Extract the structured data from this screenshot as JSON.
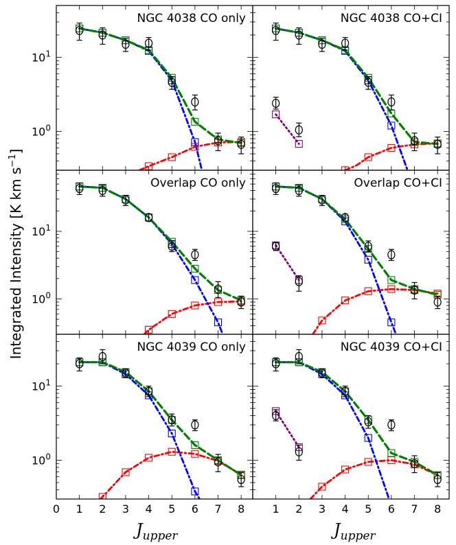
{
  "figure": {
    "ylabel_text": "Integrated Intensity [K km s",
    "ylabel_sup": "−1",
    "ylabel_close": "]",
    "xlabel_main": "J",
    "xlabel_sub": "upper",
    "x_ticks": [
      "0",
      "1",
      "2",
      "3",
      "4",
      "5",
      "6",
      "7",
      "8"
    ],
    "y_ticks": [
      {
        "value": 1,
        "label": "10",
        "sup": "0"
      },
      {
        "value": 10,
        "label": "10",
        "sup": "1"
      }
    ],
    "colors": {
      "data": "#000000",
      "total": "#007f00",
      "low": "#0000ff",
      "high": "#ff0000",
      "ci": "#800080"
    }
  },
  "chart_data": [
    {
      "type": "line",
      "title": "NGC 4038 CO only",
      "xlim": [
        0,
        8.5
      ],
      "ylim": [
        0.3,
        50
      ],
      "yscale": "log",
      "observed": {
        "x": [
          1,
          2,
          3,
          4,
          5,
          6,
          7,
          8
        ],
        "y": [
          23,
          20,
          15,
          15.5,
          4.6,
          2.5,
          0.75,
          0.67
        ],
        "err_low": [
          17,
          15,
          12,
          12.5,
          3.7,
          1.95,
          0.55,
          0.5
        ],
        "err_high": [
          29,
          25,
          18,
          18.5,
          5.5,
          3.1,
          0.95,
          0.84
        ]
      },
      "total": {
        "x": [
          1,
          2,
          3,
          4,
          5,
          6,
          7,
          8
        ],
        "y": [
          24.5,
          21.5,
          17,
          12.5,
          5.3,
          1.35,
          0.78,
          0.7
        ]
      },
      "low_component": {
        "x": [
          1,
          2,
          3,
          4,
          5,
          6,
          6.3
        ],
        "y": [
          24.5,
          21.5,
          17,
          12.2,
          4.9,
          0.72,
          0.3
        ]
      },
      "high_component": {
        "x": [
          3.6,
          4,
          5,
          6,
          7,
          8
        ],
        "y": [
          0.3,
          0.34,
          0.45,
          0.62,
          0.71,
          0.72
        ]
      }
    },
    {
      "type": "line",
      "title": "NGC 4038 CO+CI",
      "xlim": [
        0,
        8.5
      ],
      "ylim": [
        0.3,
        50
      ],
      "yscale": "log",
      "observed": {
        "x": [
          1,
          2,
          3,
          4,
          5,
          6,
          7,
          8
        ],
        "y": [
          23,
          20,
          15,
          15.5,
          4.6,
          2.5,
          0.75,
          0.67
        ],
        "err_low": [
          17,
          15,
          12,
          12.5,
          3.7,
          1.95,
          0.55,
          0.5
        ],
        "err_high": [
          29,
          25,
          18,
          18.5,
          5.5,
          3.1,
          0.95,
          0.84
        ]
      },
      "total": {
        "x": [
          1,
          2,
          3,
          4,
          5,
          6,
          7,
          8
        ],
        "y": [
          24.5,
          21.5,
          17,
          12.5,
          5.3,
          1.75,
          0.72,
          0.68
        ]
      },
      "low_component": {
        "x": [
          1,
          2,
          3,
          4,
          5,
          6,
          6.7
        ],
        "y": [
          24.5,
          21.5,
          17,
          12.2,
          4.9,
          1.2,
          0.3
        ]
      },
      "high_component": {
        "x": [
          4,
          4.5,
          5,
          6,
          7,
          8
        ],
        "y": [
          0.3,
          0.35,
          0.45,
          0.6,
          0.67,
          0.69
        ]
      },
      "ci": {
        "x": [
          1,
          2
        ],
        "y": [
          1.7,
          0.68
        ]
      },
      "ci_observed": {
        "x": [
          1,
          2
        ],
        "y": [
          2.4,
          1.05
        ],
        "err_low": [
          2.0,
          0.85
        ],
        "err_high": [
          2.9,
          1.3
        ]
      }
    },
    {
      "type": "line",
      "title": "Overlap CO only",
      "xlim": [
        0,
        8.5
      ],
      "ylim": [
        0.3,
        80
      ],
      "yscale": "log",
      "observed": {
        "x": [
          1,
          2,
          3,
          4,
          5,
          6,
          7,
          8
        ],
        "y": [
          43,
          40,
          29,
          16,
          6,
          4.5,
          1.4,
          0.9
        ],
        "err_low": [
          35,
          33,
          24,
          14,
          5,
          3.7,
          1.05,
          0.72
        ],
        "err_high": [
          52,
          48,
          34,
          18,
          7.2,
          5.4,
          1.8,
          1.1
        ]
      },
      "total": {
        "x": [
          1,
          2,
          3,
          4,
          5,
          6,
          7,
          8
        ],
        "y": [
          46,
          44,
          30,
          16,
          7,
          2.8,
          1.35,
          0.95
        ]
      },
      "low_component": {
        "x": [
          1,
          2,
          3,
          4,
          5,
          6,
          7,
          7.2
        ],
        "y": [
          46,
          44,
          30,
          16,
          6.5,
          1.9,
          0.45,
          0.3
        ]
      },
      "high_component": {
        "x": [
          3.8,
          4,
          5,
          6,
          7,
          8
        ],
        "y": [
          0.3,
          0.35,
          0.6,
          0.8,
          0.9,
          0.92
        ]
      }
    },
    {
      "type": "line",
      "title": "Overlap CO+CI",
      "xlim": [
        0,
        8.5
      ],
      "ylim": [
        0.3,
        80
      ],
      "yscale": "log",
      "observed": {
        "x": [
          1,
          2,
          3,
          4,
          5,
          6,
          7,
          8
        ],
        "y": [
          43,
          40,
          29,
          16,
          6,
          4.5,
          1.35,
          0.9
        ],
        "err_low": [
          35,
          33,
          24,
          14,
          5,
          3.7,
          1.0,
          0.72
        ],
        "err_high": [
          52,
          48,
          34,
          18,
          7.2,
          5.4,
          1.75,
          1.1
        ]
      },
      "total": {
        "x": [
          1,
          2,
          3,
          4,
          5,
          6,
          7,
          8
        ],
        "y": [
          46,
          44,
          30,
          15,
          5.5,
          1.9,
          1.4,
          1.15
        ]
      },
      "low_component": {
        "x": [
          1,
          2,
          3,
          4,
          5,
          6,
          6.2
        ],
        "y": [
          46,
          44,
          30,
          14,
          3.8,
          0.45,
          0.3
        ]
      },
      "high_component": {
        "x": [
          2.6,
          3,
          4,
          5,
          6,
          7,
          8
        ],
        "y": [
          0.3,
          0.48,
          0.95,
          1.3,
          1.4,
          1.35,
          1.2
        ]
      },
      "ci": {
        "x": [
          1,
          2
        ],
        "y": [
          6.2,
          1.9
        ]
      },
      "ci_observed": {
        "x": [
          1,
          2
        ],
        "y": [
          6.0,
          1.8
        ],
        "err_low": [
          5.2,
          1.3
        ],
        "err_high": [
          6.8,
          2.2
        ]
      }
    },
    {
      "type": "line",
      "title": "NGC 4039 CO only",
      "xlim": [
        0,
        8.5
      ],
      "ylim": [
        0.3,
        50
      ],
      "yscale": "log",
      "observed": {
        "x": [
          1,
          2,
          3,
          4,
          5,
          6,
          7,
          8
        ],
        "y": [
          20,
          25,
          15,
          8.5,
          3.5,
          3.0,
          0.95,
          0.55
        ],
        "err_low": [
          16,
          20,
          13,
          7.2,
          2.9,
          2.5,
          0.7,
          0.44
        ],
        "err_high": [
          24,
          31,
          17,
          10,
          4.2,
          3.5,
          1.2,
          0.68
        ]
      },
      "total": {
        "x": [
          1,
          2,
          3,
          4,
          5,
          6,
          7,
          8
        ],
        "y": [
          21,
          21,
          15.5,
          8.5,
          3.5,
          1.6,
          1.0,
          0.63
        ]
      },
      "low_component": {
        "x": [
          1,
          2,
          3,
          4,
          5,
          6,
          6.2
        ],
        "y": [
          21,
          21,
          14.5,
          7.5,
          2.3,
          0.38,
          0.3
        ]
      },
      "high_component": {
        "x": [
          1.9,
          2,
          3,
          4,
          5,
          6,
          7,
          8
        ],
        "y": [
          0.3,
          0.32,
          0.69,
          1.08,
          1.3,
          1.22,
          0.98,
          0.64
        ]
      }
    },
    {
      "type": "line",
      "title": "NGC 4039 CO+CI",
      "xlim": [
        0,
        8.5
      ],
      "ylim": [
        0.3,
        50
      ],
      "yscale": "log",
      "observed": {
        "x": [
          1,
          2,
          3,
          4,
          5,
          6,
          7,
          8
        ],
        "y": [
          20,
          25,
          15,
          8.5,
          3.3,
          3.0,
          0.9,
          0.55
        ],
        "err_low": [
          16,
          20,
          13,
          7.2,
          2.7,
          2.5,
          0.68,
          0.44
        ],
        "err_high": [
          24,
          31,
          17,
          10,
          4.0,
          3.5,
          1.15,
          0.68
        ]
      },
      "total": {
        "x": [
          1,
          2,
          3,
          4,
          5,
          6,
          7,
          8
        ],
        "y": [
          21,
          21,
          15.5,
          8.5,
          3.5,
          1.25,
          0.95,
          0.63
        ]
      },
      "low_component": {
        "x": [
          1,
          2,
          3,
          4,
          5,
          5.9
        ],
        "y": [
          21,
          21,
          14.5,
          7.5,
          2.0,
          0.3
        ]
      },
      "high_component": {
        "x": [
          2.5,
          3,
          4,
          5,
          6,
          7,
          8
        ],
        "y": [
          0.3,
          0.44,
          0.75,
          0.95,
          1.0,
          0.88,
          0.63
        ]
      },
      "ci": {
        "x": [
          1,
          2
        ],
        "y": [
          4.6,
          1.5
        ]
      },
      "ci_observed": {
        "x": [
          1,
          2
        ],
        "y": [
          4.0,
          1.3
        ],
        "err_low": [
          3.4,
          1.0
        ],
        "err_high": [
          4.8,
          1.6
        ]
      }
    }
  ]
}
